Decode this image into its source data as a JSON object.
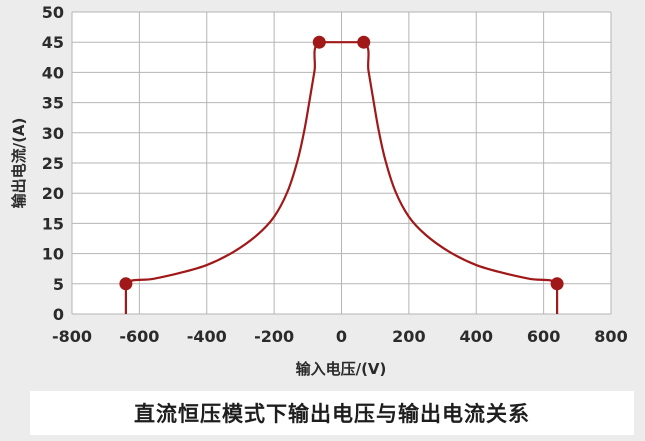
{
  "caption": "直流恒压模式下输出电压与输出电流关系",
  "chart_data": {
    "type": "line",
    "xlabel": "输入电压/(V)",
    "ylabel": "输出电流/(A)",
    "xlim": [
      -800,
      800
    ],
    "ylim": [
      0,
      50
    ],
    "xticks": [
      -800,
      -600,
      -400,
      -200,
      0,
      200,
      400,
      600,
      800
    ],
    "yticks": [
      0,
      5,
      10,
      15,
      20,
      25,
      30,
      35,
      40,
      45,
      50
    ],
    "grid": true,
    "legend": "none",
    "series": [
      {
        "color": "#a01818",
        "points": [
          [
            -640,
            0
          ],
          [
            -640,
            5
          ],
          [
            -560,
            5.8
          ],
          [
            -480,
            6.8
          ],
          [
            -400,
            8.1
          ],
          [
            -320,
            10.3
          ],
          [
            -250,
            13.1
          ],
          [
            -200,
            16.1
          ],
          [
            -160,
            20.3
          ],
          [
            -130,
            25.5
          ],
          [
            -110,
            30.5
          ],
          [
            -95,
            35.3
          ],
          [
            -80,
            40.3
          ],
          [
            -66,
            45
          ],
          [
            66,
            45
          ],
          [
            80,
            40.3
          ],
          [
            95,
            35.3
          ],
          [
            110,
            30.5
          ],
          [
            130,
            25.5
          ],
          [
            160,
            20.3
          ],
          [
            200,
            16.1
          ],
          [
            250,
            13.1
          ],
          [
            320,
            10.3
          ],
          [
            400,
            8.1
          ],
          [
            480,
            6.8
          ],
          [
            560,
            5.8
          ],
          [
            640,
            5
          ],
          [
            640,
            0
          ]
        ],
        "markers": [
          [
            -640,
            5
          ],
          [
            -66,
            45
          ],
          [
            66,
            45
          ],
          [
            640,
            5
          ]
        ]
      }
    ]
  }
}
